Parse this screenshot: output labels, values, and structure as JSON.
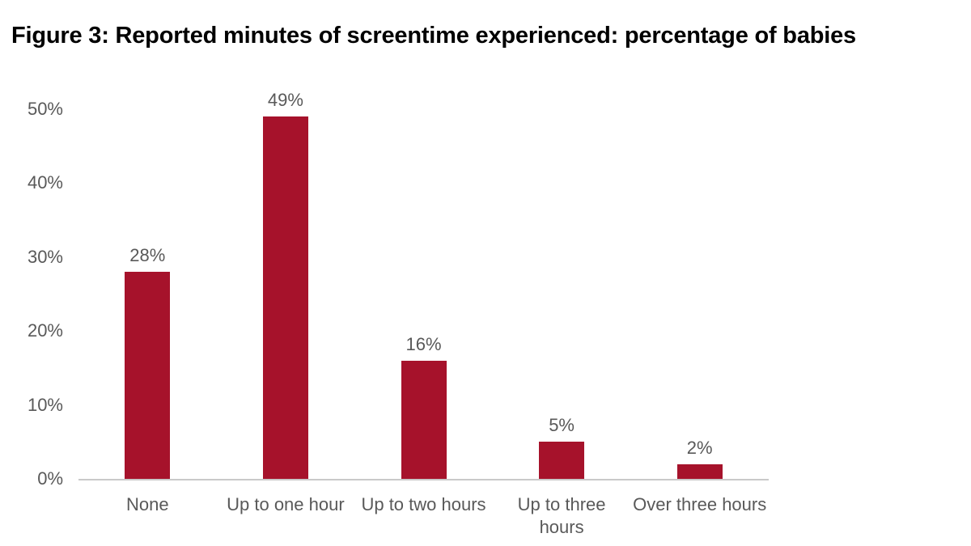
{
  "figure": {
    "title": "Figure 3: Reported minutes of screentime experienced: percentage of babies"
  },
  "chart_data": {
    "type": "bar",
    "title": "Figure 3: Reported minutes of screentime experienced: percentage of babies",
    "categories": [
      "None",
      "Up to one hour",
      "Up to two hours",
      "Up to three\nhours",
      "Over three hours"
    ],
    "values": [
      28,
      49,
      16,
      5,
      2
    ],
    "value_labels": [
      "28%",
      "49%",
      "16%",
      "5%",
      "2%"
    ],
    "xlabel": "",
    "ylabel": "",
    "y_ticks": [
      "0%",
      "10%",
      "20%",
      "30%",
      "40%",
      "50%"
    ],
    "y_tick_values": [
      0,
      10,
      20,
      30,
      40,
      50
    ],
    "ylim": [
      0,
      50
    ],
    "grid": false,
    "legend": false,
    "bar_color": "#A6122B",
    "axis_line_color": "#C9C9C9",
    "label_color": "#595959",
    "title_color": "#000000"
  }
}
